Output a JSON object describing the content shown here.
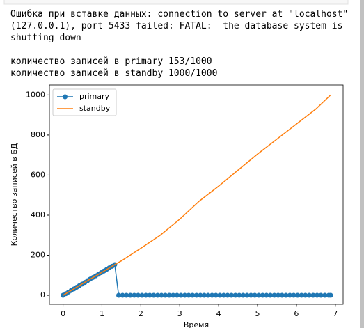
{
  "output_lines": [
    "Ошибка при вставке данных: connection to server at \"localhost\"",
    "(127.0.0.1), port 5433 failed: FATAL:  the database system is",
    "shutting down",
    "количество записей в primary 153/1000",
    "количество записей в standby 1000/1000"
  ],
  "chart_data": {
    "type": "line",
    "xlabel": "Время",
    "ylabel": "Количество записей в БД",
    "xlim": [
      -0.35,
      7.2
    ],
    "ylim": [
      -45,
      1050
    ],
    "xticks": [
      0,
      1,
      2,
      3,
      4,
      5,
      6,
      7
    ],
    "yticks": [
      0,
      200,
      400,
      600,
      800,
      1000
    ],
    "legend": "upper left",
    "grid": false,
    "series": [
      {
        "name": "primary",
        "color": "#1f77b4",
        "marker": "o",
        "x": [
          0,
          0.07,
          0.14,
          0.21,
          0.28,
          0.35,
          0.42,
          0.49,
          0.56,
          0.63,
          0.7,
          0.77,
          0.84,
          0.91,
          0.98,
          1.05,
          1.12,
          1.19,
          1.26,
          1.33,
          1.43,
          1.53,
          1.63,
          1.73,
          1.83,
          1.93,
          2.03,
          2.13,
          2.23,
          2.33,
          2.43,
          2.53,
          2.63,
          2.73,
          2.83,
          2.93,
          3.03,
          3.13,
          3.23,
          3.33,
          3.43,
          3.53,
          3.63,
          3.73,
          3.83,
          3.93,
          4.03,
          4.13,
          4.23,
          4.33,
          4.43,
          4.53,
          4.63,
          4.73,
          4.83,
          4.93,
          5.03,
          5.13,
          5.23,
          5.33,
          5.43,
          5.53,
          5.63,
          5.73,
          5.83,
          5.93,
          6.03,
          6.13,
          6.23,
          6.33,
          6.43,
          6.53,
          6.63,
          6.73,
          6.83,
          6.88
        ],
        "values": [
          0,
          8,
          16,
          24,
          32,
          40,
          48,
          56,
          64,
          73,
          81,
          89,
          97,
          105,
          113,
          121,
          129,
          137,
          145,
          153,
          0,
          0,
          0,
          0,
          0,
          0,
          0,
          0,
          0,
          0,
          0,
          0,
          0,
          0,
          0,
          0,
          0,
          0,
          0,
          0,
          0,
          0,
          0,
          0,
          0,
          0,
          0,
          0,
          0,
          0,
          0,
          0,
          0,
          0,
          0,
          0,
          0,
          0,
          0,
          0,
          0,
          0,
          0,
          0,
          0,
          0,
          0,
          0,
          0,
          0,
          0,
          0,
          0,
          0,
          0,
          0
        ]
      },
      {
        "name": "standby",
        "color": "#ff7f0e",
        "marker": null,
        "x": [
          0,
          0.5,
          1,
          1.33,
          1.5,
          2,
          2.5,
          3,
          3.5,
          4,
          4.5,
          5,
          5.5,
          6,
          6.5,
          6.88
        ],
        "values": [
          0,
          58,
          115,
          153,
          172,
          235,
          300,
          380,
          470,
          545,
          625,
          705,
          780,
          855,
          930,
          1000
        ]
      }
    ]
  }
}
